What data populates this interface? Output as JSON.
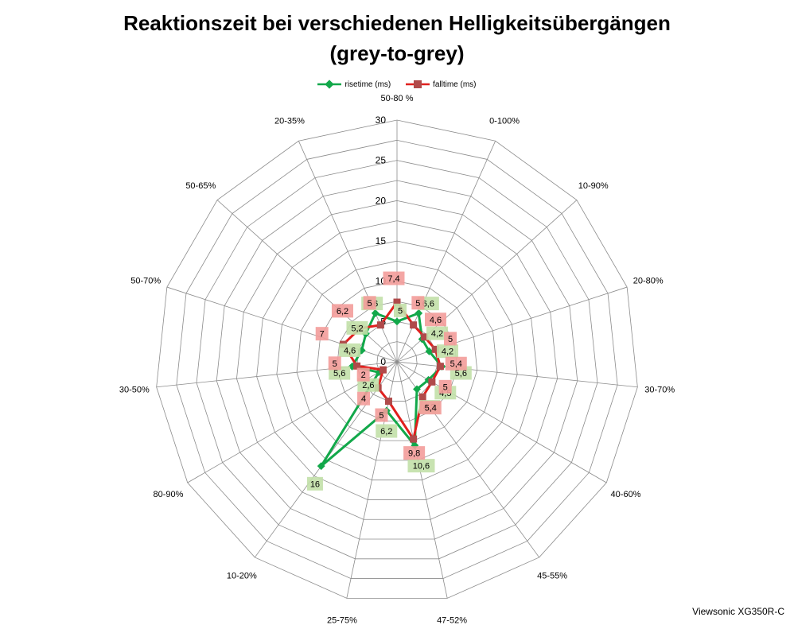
{
  "chart_data": {
    "type": "radar",
    "title_line1": "Reaktionszeit bei verschiedenen Helligkeitsübergängen",
    "title_line2": "(grey-to-grey)",
    "categories": [
      "50-80 %",
      "0-100%",
      "10-90%",
      "20-80%",
      "30-70%",
      "40-60%",
      "45-55%",
      "47-52%",
      "25-75%",
      "10-20%",
      "80-90%",
      "30-50%",
      "50-70%",
      "50-65%",
      "20-35%"
    ],
    "r_range": [
      0,
      30
    ],
    "r_ticks": [
      "0",
      "5",
      "10",
      "15",
      "20",
      "25",
      "30"
    ],
    "grid": true,
    "legend_position": "top",
    "series": [
      {
        "name": "risetime (ms)",
        "color": "#12a84a",
        "label_bg": "#c2e0a8",
        "values": [
          5,
          6.6,
          4.2,
          4.2,
          5.6,
          4.5,
          4.2,
          10.6,
          6.2,
          16,
          2.6,
          5.6,
          4.6,
          5.2,
          6.6
        ],
        "labels": [
          "5",
          "6,6",
          "4,2",
          "4,2",
          "5,6",
          "4,5",
          "4,2",
          "10,6",
          "6,2",
          "16",
          "2,6",
          "5,6",
          "4,6",
          "5,2",
          "6,6"
        ]
      },
      {
        "name": "falltime (ms)",
        "color": "#e0201e",
        "label_bg": "#f39c9a",
        "values": [
          7.4,
          5,
          4.6,
          5,
          5.4,
          5,
          5.4,
          9.8,
          5,
          4,
          2,
          5,
          7,
          6.2,
          5
        ],
        "labels": [
          "7,4",
          "5",
          "4,6",
          "5",
          "5,4",
          "5",
          "5,4",
          "9,8",
          "5",
          "4",
          "2",
          "5",
          "7",
          "6,2",
          "5"
        ]
      }
    ]
  },
  "footer": "Viewsonic XG350R-C"
}
